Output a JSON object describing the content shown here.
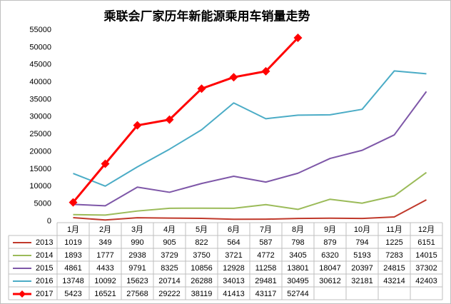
{
  "chart_data": {
    "type": "line",
    "title": "乘联会厂家历年新能源乘用车销量走势",
    "categories": [
      "1月",
      "2月",
      "3月",
      "4月",
      "5月",
      "6月",
      "7月",
      "8月",
      "9月",
      "10月",
      "11月",
      "12月"
    ],
    "series": [
      {
        "name": "2013",
        "color": "#c0392b",
        "values": [
          1019,
          349,
          990,
          905,
          822,
          564,
          587,
          798,
          879,
          794,
          1225,
          6151
        ]
      },
      {
        "name": "2014",
        "color": "#9bbb59",
        "values": [
          1893,
          1777,
          2938,
          3729,
          3750,
          3721,
          4772,
          3405,
          6320,
          5193,
          7283,
          14015
        ]
      },
      {
        "name": "2015",
        "color": "#7e57a8",
        "values": [
          4861,
          4433,
          9791,
          8325,
          10856,
          12928,
          11258,
          13801,
          18047,
          20397,
          24815,
          37302
        ]
      },
      {
        "name": "2016",
        "color": "#4bacc6",
        "values": [
          13748,
          10092,
          15623,
          20714,
          26288,
          34013,
          29481,
          30495,
          30612,
          32181,
          43214,
          42403
        ]
      },
      {
        "name": "2017",
        "color": "#ff0000",
        "marker": "diamond",
        "values": [
          5423,
          16521,
          27568,
          29222,
          38119,
          41413,
          43117,
          52744,
          null,
          null,
          null,
          null
        ]
      }
    ],
    "ylim": [
      0,
      55000
    ],
    "yticks": [
      0,
      5000,
      10000,
      15000,
      20000,
      25000,
      30000,
      35000,
      40000,
      45000,
      50000,
      55000
    ],
    "grid": false
  }
}
